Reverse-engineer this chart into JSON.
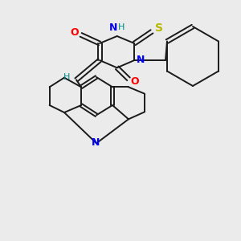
{
  "background_color": "#ebebeb",
  "bond_color": "#1a1a1a",
  "atom_colors": {
    "O": "#ff0000",
    "N": "#0000ff",
    "S": "#b8b800",
    "H_label": "#008888",
    "C": "#1a1a1a"
  },
  "figsize": [
    3.0,
    3.0
  ],
  "dpi": 100
}
